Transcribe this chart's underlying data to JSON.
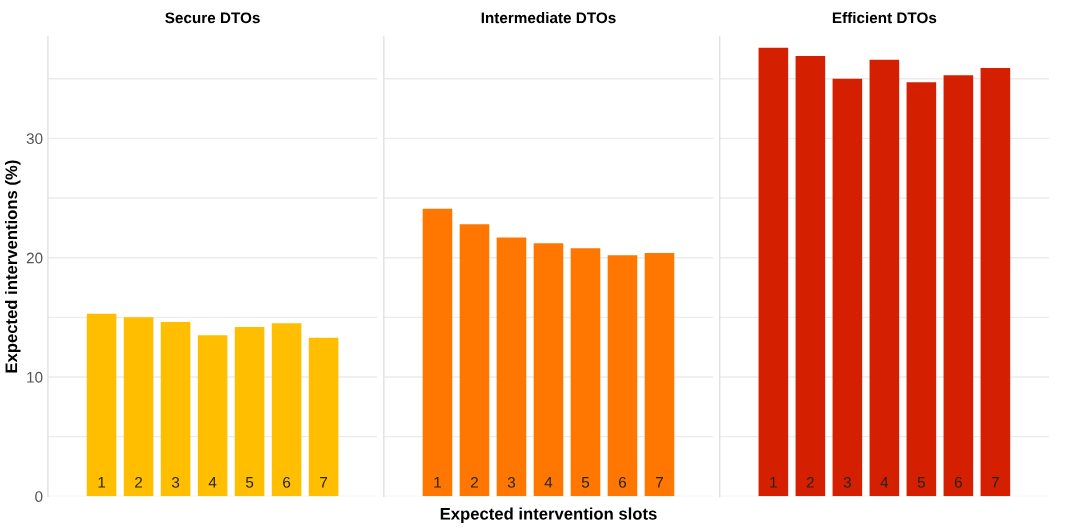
{
  "chart_data": [
    {
      "type": "bar",
      "title": "Secure DTOs",
      "ylabel": "Expected interventions (%)",
      "categories": [
        "1",
        "2",
        "3",
        "4",
        "5",
        "6",
        "7"
      ],
      "values": [
        15.3,
        15.0,
        14.6,
        13.5,
        14.2,
        14.5,
        13.3
      ],
      "color": "#ffbf00",
      "ylim": [
        0,
        38.5
      ],
      "yticks": [
        0,
        {
          "value": 5,
          "label": null
        },
        10,
        {
          "value": 15,
          "label": null
        },
        20,
        {
          "value": 25,
          "label": null
        },
        30,
        {
          "value": 35,
          "label": null
        }
      ],
      "grid": "y",
      "tick_labels": "y"
    },
    {
      "type": "bar",
      "title": "Intermediate DTOs",
      "xlabel": "Expected intervention slots",
      "categories": [
        "1",
        "2",
        "3",
        "4",
        "5",
        "6",
        "7"
      ],
      "values": [
        24.1,
        22.8,
        21.7,
        21.2,
        20.8,
        20.2,
        20.4
      ],
      "color": "#ff7700",
      "ylim": [
        0,
        38.5
      ],
      "yticks": [
        0,
        {
          "value": 5,
          "label": null
        },
        10,
        {
          "value": 15,
          "label": null
        },
        20,
        {
          "value": 25,
          "label": null
        },
        30,
        {
          "value": 35,
          "label": null
        }
      ],
      "grid": "y",
      "tick_labels": false
    },
    {
      "type": "bar",
      "title": "Efficient DTOs",
      "categories": [
        "1",
        "2",
        "3",
        "4",
        "5",
        "6",
        "7"
      ],
      "values": [
        37.6,
        36.9,
        35.0,
        36.6,
        34.7,
        35.3,
        35.9
      ],
      "color": "#d42000",
      "ylim": [
        0,
        38.5
      ],
      "yticks": [
        0,
        {
          "value": 5,
          "label": null
        },
        10,
        {
          "value": 15,
          "label": null
        },
        20,
        {
          "value": 25,
          "label": null
        },
        30,
        {
          "value": 35,
          "label": null
        }
      ],
      "grid": "y",
      "tick_labels": false
    }
  ]
}
